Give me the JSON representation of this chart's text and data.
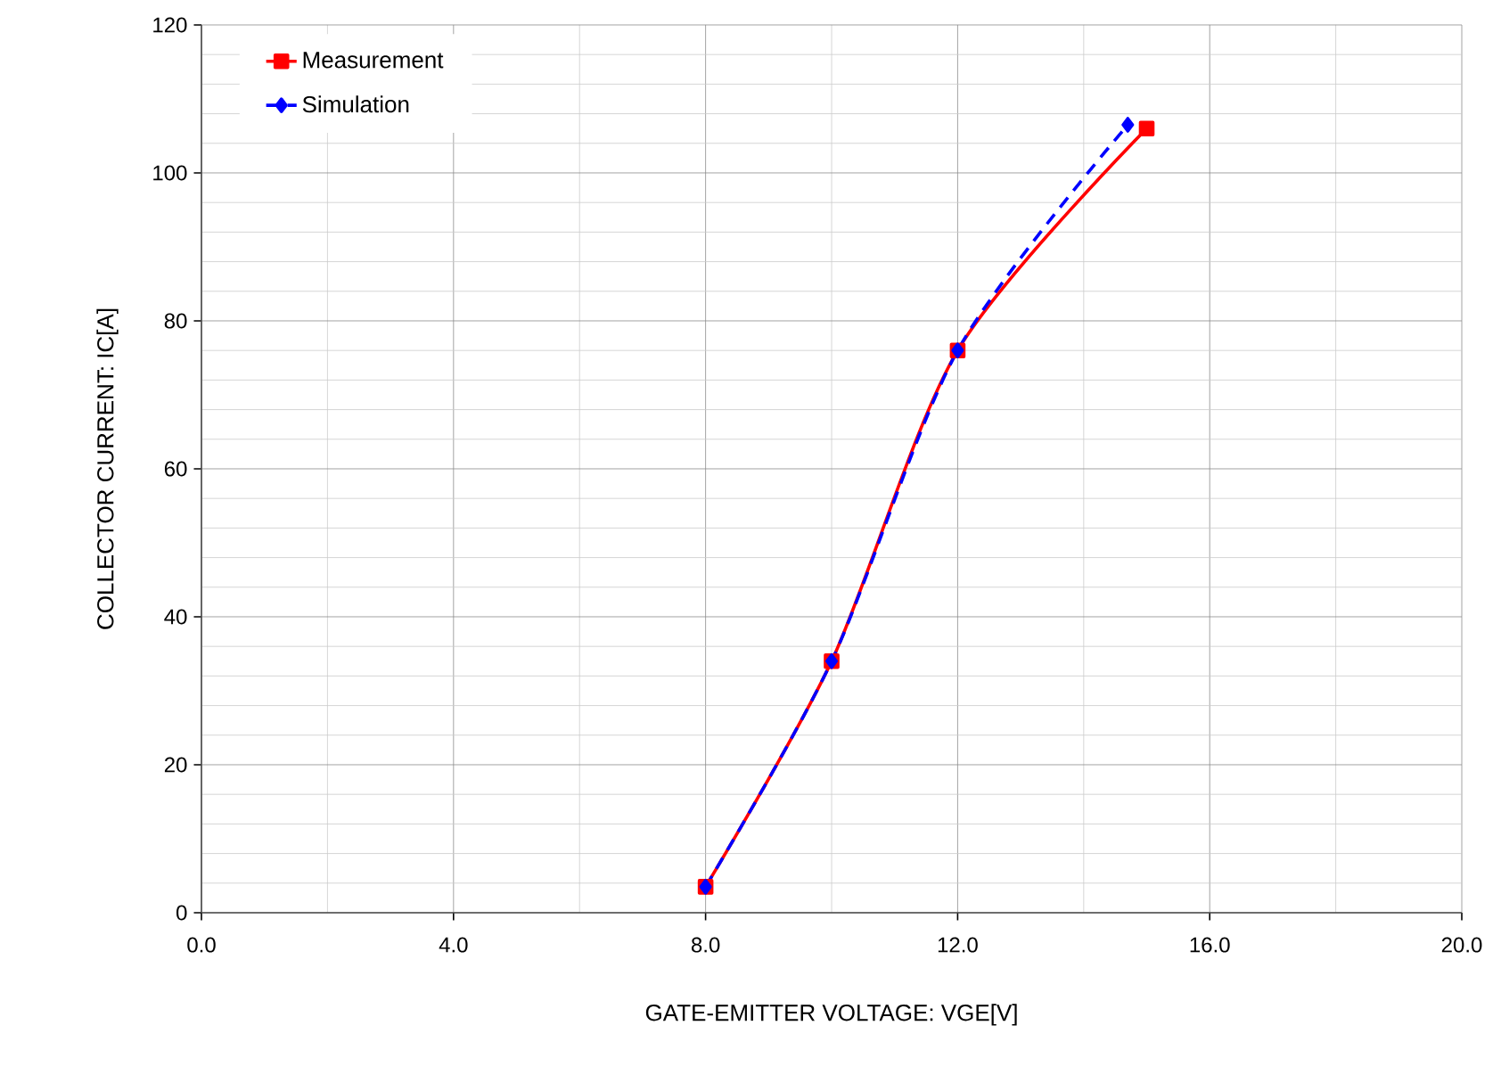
{
  "chart_data": {
    "type": "line",
    "xlabel": "GATE-EMITTER VOLTAGE: VGE[V]",
    "ylabel": "COLLECTOR CURRENT: IC[A]",
    "xlim": [
      0,
      20
    ],
    "ylim": [
      0,
      120
    ],
    "xticks": [
      {
        "value": 0,
        "label": "0.0"
      },
      {
        "value": 4,
        "label": "4.0"
      },
      {
        "value": 8,
        "label": "8.0"
      },
      {
        "value": 12,
        "label": "12.0"
      },
      {
        "value": 16,
        "label": "16.0"
      },
      {
        "value": 20,
        "label": "20.0"
      }
    ],
    "yticks": [
      0,
      20,
      40,
      60,
      80,
      100,
      120
    ],
    "grid": true,
    "legend": "top left",
    "series": [
      {
        "name": "Measurement",
        "color": "#ff0000",
        "marker": "square",
        "line_style": "solid",
        "x": [
          8.0,
          10.0,
          12.0,
          15.0
        ],
        "values": [
          3.5,
          34,
          76,
          106
        ]
      },
      {
        "name": "Simulation",
        "color": "#0000ff",
        "marker": "diamond",
        "line_style": "dashed",
        "x": [
          8.0,
          10.0,
          12.0,
          14.7
        ],
        "values": [
          3.5,
          34,
          76,
          106.5
        ]
      }
    ]
  }
}
